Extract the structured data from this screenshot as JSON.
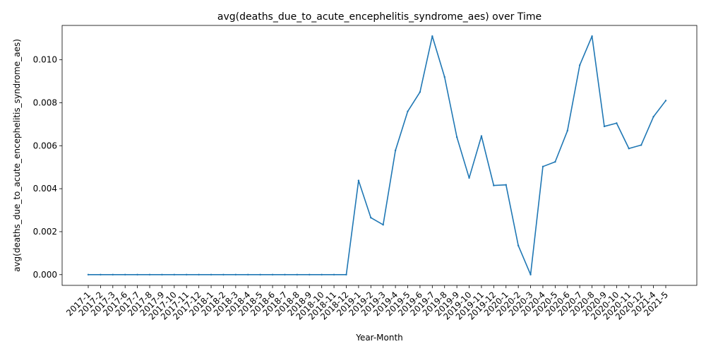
{
  "chart_data": {
    "type": "line",
    "title": "avg(deaths_due_to_acute_encephelitis_syndrome_aes) over Time",
    "xlabel": "Year-Month",
    "ylabel": "avg(deaths_due_to_acute_encephelitis_syndrome_aes)",
    "ylim": [
      -0.0005,
      0.0116
    ],
    "yticks": [
      "0.000",
      "0.002",
      "0.004",
      "0.006",
      "0.008",
      "0.010"
    ],
    "grid": false,
    "line_color": "#1f77b4",
    "categories": [
      "2017-1",
      "2017-2",
      "2017-3",
      "2017-6",
      "2017-7",
      "2017-8",
      "2017-9",
      "2017-10",
      "2017-11",
      "2017-12",
      "2018-1",
      "2018-2",
      "2018-3",
      "2018-4",
      "2018-5",
      "2018-6",
      "2018-7",
      "2018-8",
      "2018-9",
      "2018-10",
      "2018-11",
      "2018-12",
      "2019-1",
      "2019-2",
      "2019-3",
      "2019-4",
      "2019-5",
      "2019-6",
      "2019-7",
      "2019-8",
      "2019-9",
      "2019-10",
      "2019-11",
      "2019-12",
      "2020-1",
      "2020-2",
      "2020-3",
      "2020-4",
      "2020-5",
      "2020-6",
      "2020-7",
      "2020-8",
      "2020-9",
      "2020-10",
      "2020-11",
      "2020-12",
      "2021-4",
      "2021-5"
    ],
    "values": [
      0,
      0,
      0,
      0,
      0,
      0,
      0,
      0,
      0,
      0,
      0,
      0,
      0,
      0,
      0,
      0,
      0,
      0,
      0,
      0,
      0,
      0,
      0.00438,
      0.00265,
      0.00232,
      0.00578,
      0.0076,
      0.0085,
      0.0111,
      0.0092,
      0.0064,
      0.0045,
      0.00645,
      0.00415,
      0.00418,
      0.00135,
      0,
      0.00503,
      0.00525,
      0.0067,
      0.00975,
      0.0111,
      0.0069,
      0.00705,
      0.00587,
      0.00603,
      0.00735,
      0.0081
    ]
  }
}
